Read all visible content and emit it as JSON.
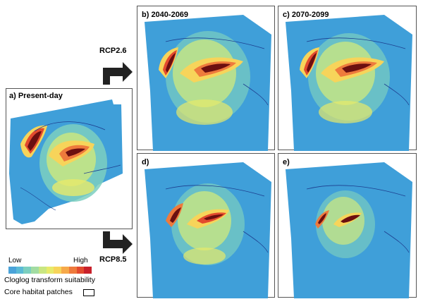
{
  "panels": {
    "a": {
      "label": "a)  Present-day"
    },
    "b": {
      "label": "b)  2040-2069"
    },
    "c": {
      "label": "c)  2070-2099"
    },
    "d": {
      "label": "d)"
    },
    "e": {
      "label": "e)"
    }
  },
  "arrows": {
    "top": "RCP2.6",
    "bottom": "RCP8.5"
  },
  "legend": {
    "low": "Low",
    "high": "High",
    "title": "Cloglog transform suitability",
    "core": "Core habitat patches",
    "colors": [
      "#4aa3d9",
      "#5bbad5",
      "#7ccfbf",
      "#a2dca2",
      "#c9e681",
      "#e7ea6a",
      "#f7d45a",
      "#f6a94a",
      "#ee7a3c",
      "#e24a2e",
      "#c8202a"
    ]
  },
  "colors": {
    "water": "#3f9fd9",
    "river": "#1d3e8f",
    "core": "#6b0f10"
  }
}
